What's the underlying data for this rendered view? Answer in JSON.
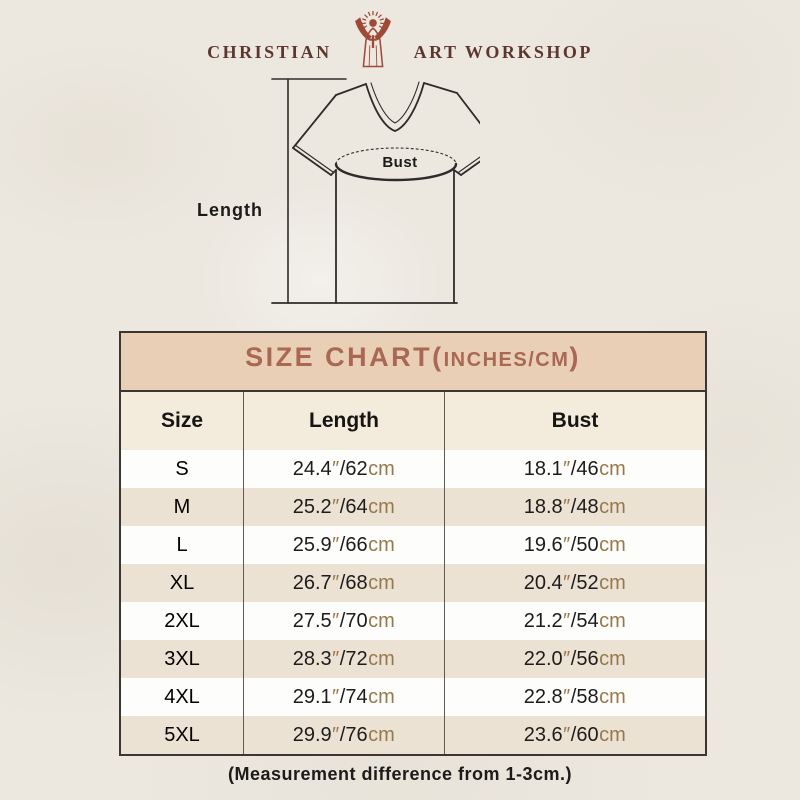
{
  "brand": {
    "name_left": "CHRISTIAN",
    "name_right": "ART WORKSHOP",
    "figure_icon": "jesus-rays-icon"
  },
  "diagram": {
    "length_label": "Length",
    "bust_label": "Bust"
  },
  "size_chart": {
    "title_main": "SIZE CHART(",
    "title_small": "INCHES/CM",
    "title_close": ")",
    "columns": [
      "Size",
      "Length",
      "Bust"
    ],
    "units": {
      "inch_mark": "″",
      "separator": "/",
      "cm": "cm"
    },
    "rows": [
      {
        "size": "S",
        "length_in": "24.4",
        "length_cm": "62",
        "bust_in": "18.1",
        "bust_cm": "46"
      },
      {
        "size": "M",
        "length_in": "25.2",
        "length_cm": "64",
        "bust_in": "18.8",
        "bust_cm": "48"
      },
      {
        "size": "L",
        "length_in": "25.9",
        "length_cm": "66",
        "bust_in": "19.6",
        "bust_cm": "50"
      },
      {
        "size": "XL",
        "length_in": "26.7",
        "length_cm": "68",
        "bust_in": "20.4",
        "bust_cm": "52"
      },
      {
        "size": "2XL",
        "length_in": "27.5",
        "length_cm": "70",
        "bust_in": "21.2",
        "bust_cm": "54"
      },
      {
        "size": "3XL",
        "length_in": "28.3",
        "length_cm": "72",
        "bust_in": "22.0",
        "bust_cm": "56"
      },
      {
        "size": "4XL",
        "length_in": "29.1",
        "length_cm": "74",
        "bust_in": "22.8",
        "bust_cm": "58"
      },
      {
        "size": "5XL",
        "length_in": "29.9",
        "length_cm": "76",
        "bust_in": "23.6",
        "bust_cm": "60"
      }
    ]
  },
  "note": "(Measurement difference from 1-3cm.)",
  "colors": {
    "page_bg": "#ece8e0",
    "band_bg": "#e9cfb5",
    "title_text": "#a86853",
    "header_row_bg": "#f3ebdc",
    "row_beige": "#ece2d3",
    "row_white": "#fdfdfb",
    "table_border": "#3a3733",
    "unit_brown": "#97784b",
    "text_black": "#1d1c1a",
    "logo_figure_red": "#9e4a39",
    "logo_text_brown": "#5d372e"
  }
}
